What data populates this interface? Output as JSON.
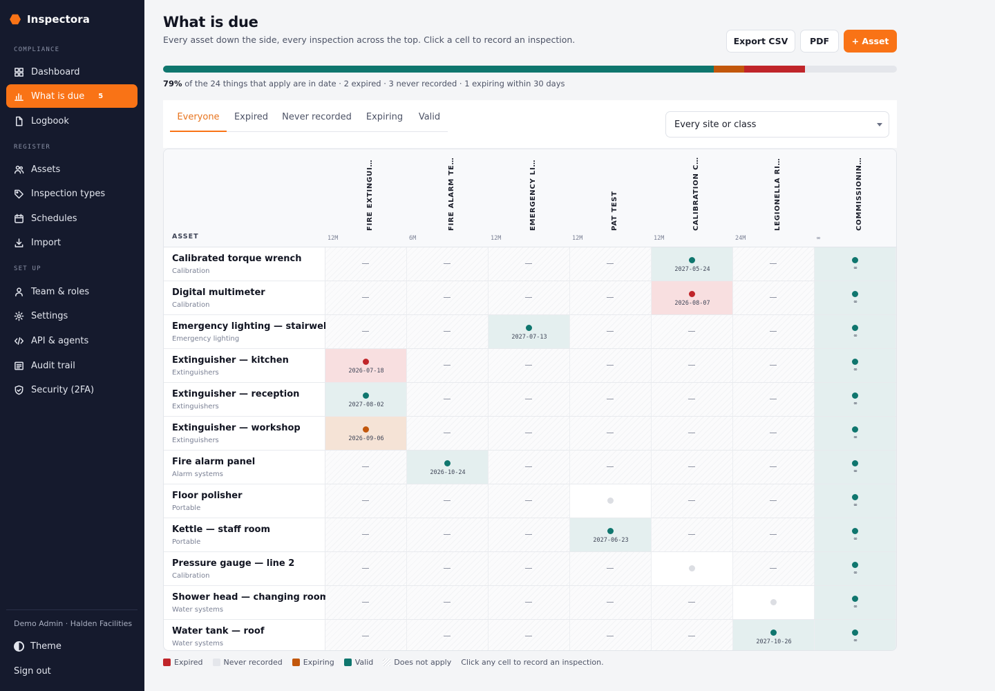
{
  "app": {
    "name": "Inspectora",
    "brand_color": "#f97316"
  },
  "sidebar": {
    "sections": [
      {
        "label": "COMPLIANCE",
        "items": [
          {
            "label": "Dashboard",
            "icon": "dashboard-icon"
          },
          {
            "label": "What is due",
            "icon": "chart-icon",
            "badge": "5",
            "active": true
          },
          {
            "label": "Logbook",
            "icon": "document-icon"
          }
        ]
      },
      {
        "label": "REGISTER",
        "items": [
          {
            "label": "Assets",
            "icon": "users-icon"
          },
          {
            "label": "Inspection types",
            "icon": "tag-icon"
          },
          {
            "label": "Schedules",
            "icon": "calendar-icon"
          },
          {
            "label": "Import",
            "icon": "download-icon"
          }
        ]
      },
      {
        "label": "SET UP",
        "items": [
          {
            "label": "Team & roles",
            "icon": "user-icon"
          },
          {
            "label": "Settings",
            "icon": "gear-icon"
          },
          {
            "label": "API & agents",
            "icon": "code-icon"
          },
          {
            "label": "Audit trail",
            "icon": "list-icon"
          },
          {
            "label": "Security (2FA)",
            "icon": "shield-icon"
          }
        ]
      }
    ],
    "user": "Demo Admin · Halden Facilities",
    "theme_label": "Theme",
    "signout_label": "Sign out"
  },
  "header": {
    "title": "What is due",
    "subtitle": "Every asset down the side, every inspection across the top. Click a cell to record an inspection.",
    "buttons": {
      "export_csv": "Export CSV",
      "pdf": "PDF",
      "add_asset": "+ Asset"
    }
  },
  "progress": {
    "segments": [
      {
        "status": "valid",
        "fraction": 0.75,
        "color": "#0f766e"
      },
      {
        "status": "expiring",
        "fraction": 0.042,
        "color": "#c2570c"
      },
      {
        "status": "expired",
        "fraction": 0.083,
        "color": "#c0252a"
      }
    ],
    "percent": "79%",
    "summary": "of the 24 things that apply are in date · 2 expired · 3 never recorded · 1 expiring within 30 days"
  },
  "filters": {
    "tabs": [
      "Everyone",
      "Expired",
      "Never recorded",
      "Expiring",
      "Valid"
    ],
    "active_tab": "Everyone",
    "site_select": "Every site or class"
  },
  "matrix": {
    "asset_header": "ASSET",
    "columns": [
      {
        "title": "FIRE EXTINGUISHER SERVICE",
        "period": "12M"
      },
      {
        "title": "FIRE ALARM TEST",
        "period": "6M"
      },
      {
        "title": "EMERGENCY LIGHTING TEST",
        "period": "12M"
      },
      {
        "title": "PAT TEST",
        "period": "12M"
      },
      {
        "title": "CALIBRATION CERTIFICATE",
        "period": "12M"
      },
      {
        "title": "LEGIONELLA RISK ASSESSMENT",
        "period": "24M"
      },
      {
        "title": "COMMISSIONING RECORD",
        "period": "∞"
      }
    ],
    "rows": [
      {
        "name": "Calibrated torque wrench",
        "class": "Calibration",
        "cells": [
          {
            "s": "na"
          },
          {
            "s": "na"
          },
          {
            "s": "na"
          },
          {
            "s": "na"
          },
          {
            "s": "valid",
            "date": "2027-05-24"
          },
          {
            "s": "na"
          },
          {
            "s": "valid",
            "date": "∞"
          }
        ]
      },
      {
        "name": "Digital multimeter",
        "class": "Calibration",
        "cells": [
          {
            "s": "na"
          },
          {
            "s": "na"
          },
          {
            "s": "na"
          },
          {
            "s": "na"
          },
          {
            "s": "expired",
            "date": "2026-08-07"
          },
          {
            "s": "na"
          },
          {
            "s": "valid",
            "date": "∞"
          }
        ]
      },
      {
        "name": "Emergency lighting — stairwell",
        "class": "Emergency lighting",
        "cells": [
          {
            "s": "na"
          },
          {
            "s": "na"
          },
          {
            "s": "valid",
            "date": "2027-07-13"
          },
          {
            "s": "na"
          },
          {
            "s": "na"
          },
          {
            "s": "na"
          },
          {
            "s": "valid",
            "date": "∞"
          }
        ]
      },
      {
        "name": "Extinguisher — kitchen",
        "class": "Extinguishers",
        "cells": [
          {
            "s": "expired",
            "date": "2026-07-18"
          },
          {
            "s": "na"
          },
          {
            "s": "na"
          },
          {
            "s": "na"
          },
          {
            "s": "na"
          },
          {
            "s": "na"
          },
          {
            "s": "valid",
            "date": "∞"
          }
        ]
      },
      {
        "name": "Extinguisher — reception",
        "class": "Extinguishers",
        "cells": [
          {
            "s": "valid",
            "date": "2027-08-02"
          },
          {
            "s": "na"
          },
          {
            "s": "na"
          },
          {
            "s": "na"
          },
          {
            "s": "na"
          },
          {
            "s": "na"
          },
          {
            "s": "valid",
            "date": "∞"
          }
        ]
      },
      {
        "name": "Extinguisher — workshop",
        "class": "Extinguishers",
        "cells": [
          {
            "s": "expiring",
            "date": "2026-09-06"
          },
          {
            "s": "na"
          },
          {
            "s": "na"
          },
          {
            "s": "na"
          },
          {
            "s": "na"
          },
          {
            "s": "na"
          },
          {
            "s": "valid",
            "date": "∞"
          }
        ]
      },
      {
        "name": "Fire alarm panel",
        "class": "Alarm systems",
        "cells": [
          {
            "s": "na"
          },
          {
            "s": "valid",
            "date": "2026-10-24"
          },
          {
            "s": "na"
          },
          {
            "s": "na"
          },
          {
            "s": "na"
          },
          {
            "s": "na"
          },
          {
            "s": "valid",
            "date": "∞"
          }
        ]
      },
      {
        "name": "Floor polisher",
        "class": "Portable",
        "cells": [
          {
            "s": "na"
          },
          {
            "s": "na"
          },
          {
            "s": "na"
          },
          {
            "s": "never"
          },
          {
            "s": "na"
          },
          {
            "s": "na"
          },
          {
            "s": "valid",
            "date": "∞"
          }
        ]
      },
      {
        "name": "Kettle — staff room",
        "class": "Portable",
        "cells": [
          {
            "s": "na"
          },
          {
            "s": "na"
          },
          {
            "s": "na"
          },
          {
            "s": "valid",
            "date": "2027-06-23"
          },
          {
            "s": "na"
          },
          {
            "s": "na"
          },
          {
            "s": "valid",
            "date": "∞"
          }
        ]
      },
      {
        "name": "Pressure gauge — line 2",
        "class": "Calibration",
        "cells": [
          {
            "s": "na"
          },
          {
            "s": "na"
          },
          {
            "s": "na"
          },
          {
            "s": "na"
          },
          {
            "s": "never"
          },
          {
            "s": "na"
          },
          {
            "s": "valid",
            "date": "∞"
          }
        ]
      },
      {
        "name": "Shower head — changing room",
        "class": "Water systems",
        "cells": [
          {
            "s": "na"
          },
          {
            "s": "na"
          },
          {
            "s": "na"
          },
          {
            "s": "na"
          },
          {
            "s": "na"
          },
          {
            "s": "never"
          },
          {
            "s": "valid",
            "date": "∞"
          }
        ]
      },
      {
        "name": "Water tank — roof",
        "class": "Water systems",
        "cells": [
          {
            "s": "na"
          },
          {
            "s": "na"
          },
          {
            "s": "na"
          },
          {
            "s": "na"
          },
          {
            "s": "na"
          },
          {
            "s": "valid",
            "date": "2027-10-26"
          },
          {
            "s": "valid",
            "date": "∞"
          }
        ]
      }
    ]
  },
  "legend": {
    "items": [
      {
        "label": "Expired",
        "color": "#c0252a"
      },
      {
        "label": "Never recorded",
        "color": "#e4e6eb"
      },
      {
        "label": "Expiring",
        "color": "#c2570c"
      },
      {
        "label": "Valid",
        "color": "#0f766e"
      },
      {
        "label": "Does not apply",
        "color": "hatched"
      }
    ],
    "hint": "Click any cell to record an inspection."
  }
}
